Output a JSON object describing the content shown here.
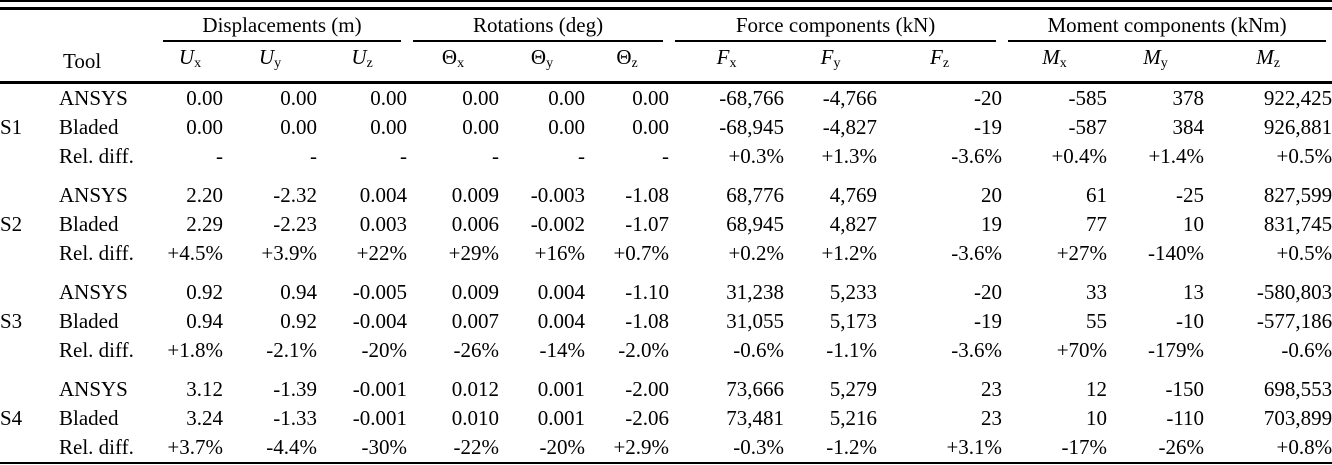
{
  "colors": {
    "text": "#000000",
    "background": "#ffffff",
    "rule": "#000000"
  },
  "table": {
    "tool_header": "Tool",
    "groups": [
      {
        "label": "Displacements (m)",
        "columns": [
          {
            "base": "U",
            "sub": "x",
            "italic": true
          },
          {
            "base": "U",
            "sub": "y",
            "italic": true
          },
          {
            "base": "U",
            "sub": "z",
            "italic": true
          }
        ]
      },
      {
        "label": "Rotations (deg)",
        "columns": [
          {
            "base": "Θ",
            "sub": "x",
            "italic": false
          },
          {
            "base": "Θ",
            "sub": "y",
            "italic": false
          },
          {
            "base": "Θ",
            "sub": "z",
            "italic": false
          }
        ]
      },
      {
        "label": "Force components (kN)",
        "columns": [
          {
            "base": "F",
            "sub": "x",
            "italic": true
          },
          {
            "base": "F",
            "sub": "y",
            "italic": true
          },
          {
            "base": "F",
            "sub": "z",
            "italic": true
          }
        ]
      },
      {
        "label": "Moment components (kNm)",
        "columns": [
          {
            "base": "M",
            "sub": "x",
            "italic": true
          },
          {
            "base": "M",
            "sub": "y",
            "italic": true
          },
          {
            "base": "M",
            "sub": "z",
            "italic": true
          }
        ]
      }
    ],
    "sections": [
      {
        "id": "S1",
        "rows": [
          {
            "tool": "ANSYS",
            "values": [
              "0.00",
              "0.00",
              "0.00",
              "0.00",
              "0.00",
              "0.00",
              "-68,766",
              "-4,766",
              "-20",
              "-585",
              "378",
              "922,425"
            ]
          },
          {
            "tool": "Bladed",
            "values": [
              "0.00",
              "0.00",
              "0.00",
              "0.00",
              "0.00",
              "0.00",
              "-68,945",
              "-4,827",
              "-19",
              "-587",
              "384",
              "926,881"
            ]
          },
          {
            "tool": "Rel. diff.",
            "values": [
              "-",
              "-",
              "-",
              "-",
              "-",
              "-",
              "+0.3%",
              "+1.3%",
              "-3.6%",
              "+0.4%",
              "+1.4%",
              "+0.5%"
            ]
          }
        ]
      },
      {
        "id": "S2",
        "rows": [
          {
            "tool": "ANSYS",
            "values": [
              "2.20",
              "-2.32",
              "0.004",
              "0.009",
              "-0.003",
              "-1.08",
              "68,776",
              "4,769",
              "20",
              "61",
              "-25",
              "827,599"
            ]
          },
          {
            "tool": "Bladed",
            "values": [
              "2.29",
              "-2.23",
              "0.003",
              "0.006",
              "-0.002",
              "-1.07",
              "68,945",
              "4,827",
              "19",
              "77",
              "10",
              "831,745"
            ]
          },
          {
            "tool": "Rel. diff.",
            "values": [
              "+4.5%",
              "+3.9%",
              "+22%",
              "+29%",
              "+16%",
              "+0.7%",
              "+0.2%",
              "+1.2%",
              "-3.6%",
              "+27%",
              "-140%",
              "+0.5%"
            ]
          }
        ]
      },
      {
        "id": "S3",
        "rows": [
          {
            "tool": "ANSYS",
            "values": [
              "0.92",
              "0.94",
              "-0.005",
              "0.009",
              "0.004",
              "-1.10",
              "31,238",
              "5,233",
              "-20",
              "33",
              "13",
              "-580,803"
            ]
          },
          {
            "tool": "Bladed",
            "values": [
              "0.94",
              "0.92",
              "-0.004",
              "0.007",
              "0.004",
              "-1.08",
              "31,055",
              "5,173",
              "-19",
              "55",
              "-10",
              "-577,186"
            ]
          },
          {
            "tool": "Rel. diff.",
            "values": [
              "+1.8%",
              "-2.1%",
              "-20%",
              "-26%",
              "-14%",
              "-2.0%",
              "-0.6%",
              "-1.1%",
              "-3.6%",
              "+70%",
              "-179%",
              "-0.6%"
            ]
          }
        ]
      },
      {
        "id": "S4",
        "rows": [
          {
            "tool": "ANSYS",
            "values": [
              "3.12",
              "-1.39",
              "-0.001",
              "0.012",
              "0.001",
              "-2.00",
              "73,666",
              "5,279",
              "23",
              "12",
              "-150",
              "698,553"
            ]
          },
          {
            "tool": "Bladed",
            "values": [
              "3.24",
              "-1.33",
              "-0.001",
              "0.010",
              "0.001",
              "-2.06",
              "73,481",
              "5,216",
              "23",
              "10",
              "-110",
              "703,899"
            ]
          },
          {
            "tool": "Rel. diff.",
            "values": [
              "+3.7%",
              "-4.4%",
              "-30%",
              "-22%",
              "-20%",
              "+2.9%",
              "-0.3%",
              "-1.2%",
              "+3.1%",
              "-17%",
              "-26%",
              "+0.8%"
            ]
          }
        ]
      }
    ]
  }
}
